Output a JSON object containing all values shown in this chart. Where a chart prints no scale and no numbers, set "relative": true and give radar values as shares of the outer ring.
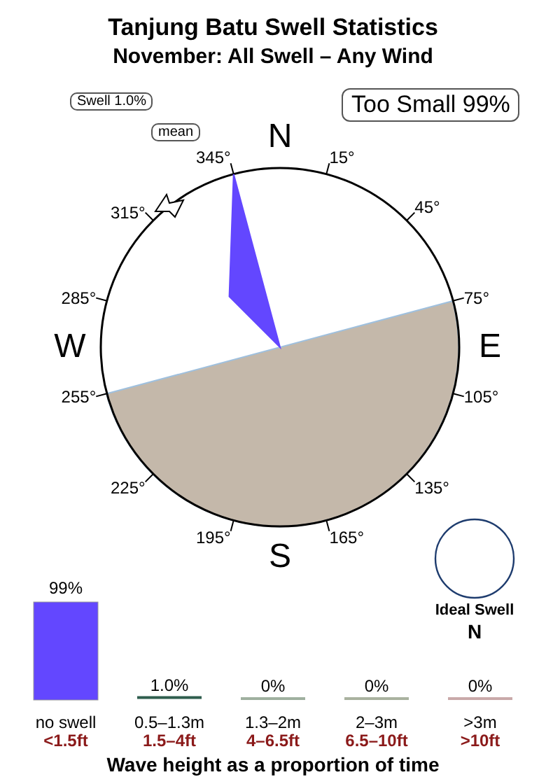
{
  "chart_data": [
    {
      "type": "radar",
      "title": "Tanjung Batu Swell Statistics",
      "subtitle": "November: All Swell – Any Wind",
      "categories": [
        "15°",
        "45°",
        "75°",
        "105°",
        "135°",
        "165°",
        "195°",
        "225°",
        "255°",
        "285°",
        "315°",
        "345°"
      ],
      "relative": true,
      "series": [
        {
          "color": "#6347ff",
          "values": [
            0,
            0,
            0,
            0,
            0,
            0,
            0,
            0,
            0,
            0,
            0.4,
            1
          ]
        }
      ],
      "annotations": [
        "N",
        "E",
        "S",
        "W",
        "Too Small 99%",
        "Swell 1.0%",
        "mean"
      ]
    },
    {
      "type": "bar",
      "categories": [
        "no swell\n<1.5ft",
        "0.5–1.3m\n1.5–4ft",
        "1.3–2m\n4–6.5ft",
        "2–3m\n6.5–10ft",
        ">3m\n>10ft"
      ],
      "values": [
        99,
        1.0,
        0,
        0,
        0
      ],
      "colors": [
        "#6347ff",
        "#2f5e4e",
        "#9fb09f",
        "#a9b29f",
        "#c9a9a9"
      ],
      "value_labels": [
        "99%",
        "1.0%",
        "0%",
        "0%",
        "0%"
      ],
      "xlabel": "Wave height as a proportion of time",
      "tick_labels": "x",
      "annotations": [
        "Ideal Swell",
        "N"
      ]
    }
  ]
}
